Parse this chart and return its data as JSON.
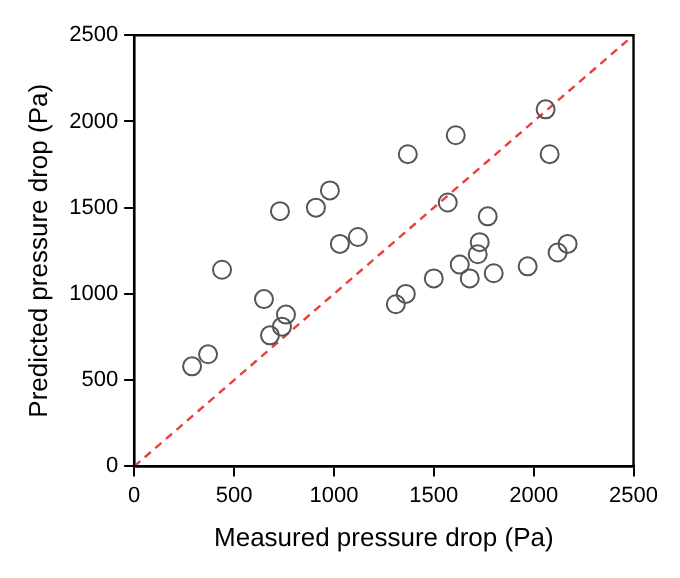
{
  "chart_data": {
    "type": "scatter",
    "xlabel": "Measured pressure drop (Pa)",
    "ylabel": "Predicted pressure drop (Pa)",
    "xlim": [
      0,
      2500
    ],
    "ylim": [
      0,
      2500
    ],
    "xticks": [
      0,
      500,
      1000,
      1500,
      2000,
      2500
    ],
    "yticks": [
      0,
      500,
      1000,
      1500,
      2000,
      2500
    ],
    "grid": false,
    "legend": false,
    "marker": "circle",
    "series": [
      {
        "color": "#555555",
        "x": [
          440,
          730,
          910,
          980,
          1030,
          1120,
          1370,
          1610,
          1570,
          1770,
          1730,
          1720,
          2060,
          2080,
          2170,
          2120,
          1970,
          1630,
          1800,
          1500,
          1680,
          290,
          370,
          650,
          680,
          740,
          760,
          1310,
          1360
        ],
        "values": [
          1140,
          1480,
          1500,
          1600,
          1290,
          1330,
          1810,
          1920,
          1530,
          1450,
          1300,
          1230,
          2070,
          1810,
          1290,
          1240,
          1160,
          1170,
          1120,
          1090,
          1090,
          580,
          650,
          970,
          760,
          810,
          880,
          940,
          1000
        ]
      },
      {
        "type": "line",
        "color": "#e8413c",
        "line_style": "dashed",
        "marker": "none",
        "x": [
          0,
          2500
        ],
        "values": [
          0,
          2500
        ]
      }
    ]
  }
}
